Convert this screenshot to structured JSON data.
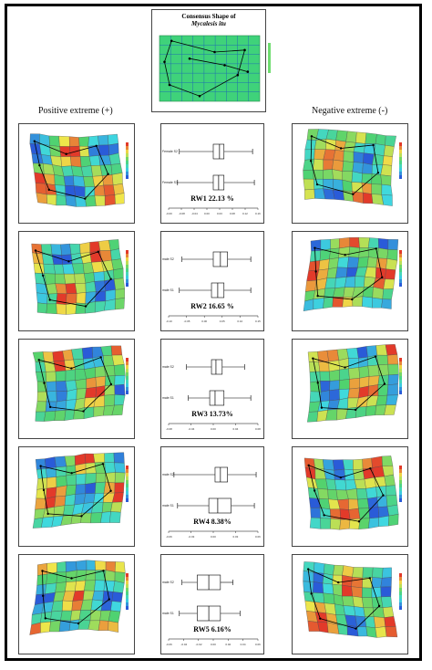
{
  "consensus": {
    "title_line1": "Consensus Shape of",
    "title_line2": "Mycalesis itu"
  },
  "headings": {
    "positive": "Positive extreme (+)",
    "negative": "Negative extreme (-)"
  },
  "colors": {
    "grid_green": "#3fd27a",
    "high_red": "#e23a2a",
    "low_blue": "#2a5bd8",
    "mid_yellow": "#f0e64a",
    "mid_cyan": "#3fd9e0"
  },
  "rows": [
    {
      "rw_label": "RW1 22.13 %",
      "groups": [
        "Female S2",
        "Female S1"
      ],
      "ticks": [
        "-0.00",
        "-0.08",
        "-0.04",
        "0.00",
        "0.03",
        "0.08",
        "0.12",
        "0.16"
      ],
      "boxes": [
        {
          "min": 0.12,
          "q1": 0.5,
          "median": 0.57,
          "q3": 0.62,
          "max": 0.94
        },
        {
          "min": 0.1,
          "q1": 0.5,
          "median": 0.56,
          "q3": 0.62,
          "max": 0.96
        }
      ]
    },
    {
      "rw_label": "RW2 16.65 %",
      "groups": [
        "male S2",
        "male S1"
      ],
      "ticks": [
        "-0.10",
        "-0.05",
        "0.00",
        "0.05",
        "0.10",
        "0.15"
      ],
      "boxes": [
        {
          "min": 0.15,
          "q1": 0.5,
          "median": 0.58,
          "q3": 0.66,
          "max": 0.92
        },
        {
          "min": 0.12,
          "q1": 0.48,
          "median": 0.55,
          "q3": 0.62,
          "max": 0.92
        }
      ]
    },
    {
      "rw_label": "RW3 13.73%",
      "groups": [
        "male S2",
        "male S1"
      ],
      "ticks": [
        "-0.08",
        "-0.04",
        "0.00",
        "0.04",
        "0.08"
      ],
      "boxes": [
        {
          "min": 0.2,
          "q1": 0.48,
          "median": 0.53,
          "q3": 0.6,
          "max": 0.85
        },
        {
          "min": 0.22,
          "q1": 0.46,
          "median": 0.52,
          "q3": 0.62,
          "max": 0.92
        }
      ]
    },
    {
      "rw_label": "RW4 8.38%",
      "groups": [
        "male S2",
        "male S1"
      ],
      "ticks": [
        "-0.06",
        "-0.03",
        "0.00",
        "0.03",
        "0.06"
      ],
      "boxes": [
        {
          "min": 0.06,
          "q1": 0.52,
          "median": 0.58,
          "q3": 0.66,
          "max": 0.98
        },
        {
          "min": 0.1,
          "q1": 0.45,
          "median": 0.55,
          "q3": 0.7,
          "max": 0.96
        }
      ]
    },
    {
      "rw_label": "RW5 6.16%",
      "groups": [
        "male S2",
        "male S1"
      ],
      "ticks": [
        "-0.06",
        "-0.04",
        "-0.02",
        "0.00",
        "0.02",
        "0.04",
        "0.06"
      ],
      "boxes": [
        {
          "min": 0.15,
          "q1": 0.32,
          "median": 0.45,
          "q3": 0.58,
          "max": 0.72
        },
        {
          "min": 0.12,
          "q1": 0.32,
          "median": 0.45,
          "q3": 0.58,
          "max": 0.8
        }
      ]
    }
  ]
}
